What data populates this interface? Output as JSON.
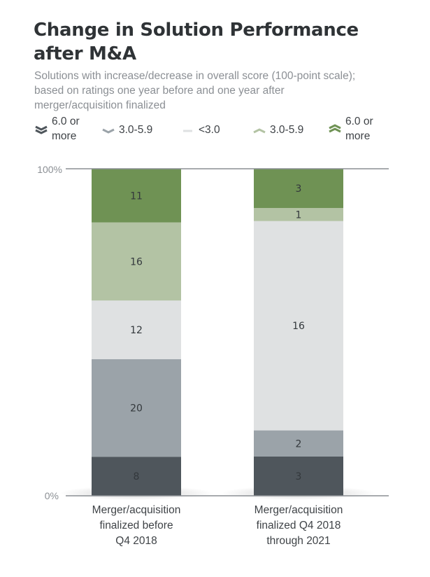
{
  "title": "Change in Solution Performance after M&A",
  "subtitle": "Solutions with increase/decrease in overall score (100-point scale); based on ratings one year before and one year after merger/acquisition finalized",
  "legend": [
    {
      "label_lines": [
        "6.0 or",
        "more"
      ],
      "icon": "double-chevron-down-icon",
      "color": "#4f565c"
    },
    {
      "label_lines": [
        "3.0-5.9"
      ],
      "icon": "chevron-down-icon",
      "color": "#9ba3a9"
    },
    {
      "label_lines": [
        "<3.0"
      ],
      "icon": "dash-icon",
      "color": "#dfe1e2"
    },
    {
      "label_lines": [
        "3.0-5.9"
      ],
      "icon": "chevron-up-icon",
      "color": "#b3c3a4"
    },
    {
      "label_lines": [
        "6.0 or",
        "more"
      ],
      "icon": "double-chevron-up-icon",
      "color": "#6f9254"
    }
  ],
  "chart_data": {
    "type": "bar",
    "stacked": true,
    "normalized": true,
    "title": "Change in Solution Performance after M&A",
    "categories": [
      [
        "Merger/acquisition",
        "finalized before",
        "Q4 2018"
      ],
      [
        "Merger/acquisition",
        "finalized Q4 2018",
        "through 2021"
      ]
    ],
    "series": [
      {
        "name": "6.0 or more decrease",
        "color": "#4f565c",
        "values": [
          8,
          3
        ]
      },
      {
        "name": "3.0-5.9 decrease",
        "color": "#9ba3a9",
        "values": [
          20,
          2
        ]
      },
      {
        "name": "<3.0",
        "color": "#dfe1e2",
        "values": [
          12,
          16
        ]
      },
      {
        "name": "3.0-5.9 increase",
        "color": "#b3c3a4",
        "values": [
          16,
          1
        ]
      },
      {
        "name": "6.0 or more increase",
        "color": "#6f9254",
        "values": [
          11,
          3
        ]
      }
    ],
    "y_ticks": [
      "0%",
      "100%"
    ],
    "ylim": [
      0,
      100
    ]
  }
}
